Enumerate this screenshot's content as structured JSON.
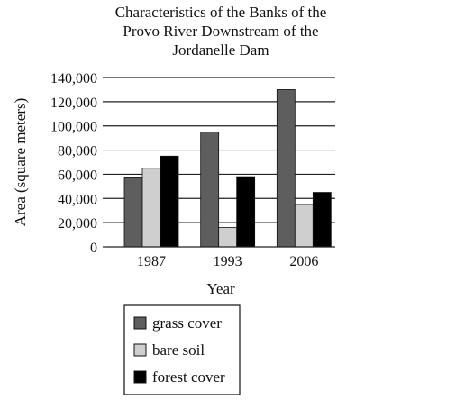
{
  "chart_data": {
    "type": "bar",
    "title_lines": [
      "Characteristics of the Banks of the",
      "Provo River Downstream of the",
      "Jordanelle Dam"
    ],
    "xlabel": "Year",
    "ylabel": "Area (square meters)",
    "categories": [
      "1987",
      "1993",
      "2006"
    ],
    "ylim": [
      0,
      140000
    ],
    "yticks": [
      0,
      20000,
      40000,
      60000,
      80000,
      100000,
      120000,
      140000
    ],
    "ytick_labels": [
      "0",
      "20,000",
      "40,000",
      "60,000",
      "80,000",
      "100,000",
      "120,000",
      "140,000"
    ],
    "grid": true,
    "legend_position": "bottom",
    "series": [
      {
        "name": "grass cover",
        "color": "#5e5e5e",
        "values": [
          57000,
          95000,
          130000
        ]
      },
      {
        "name": "bare soil",
        "color": "#cfcfcf",
        "values": [
          65000,
          16000,
          35000
        ]
      },
      {
        "name": "forest cover",
        "color": "#000000",
        "values": [
          75000,
          58000,
          45000
        ]
      }
    ]
  }
}
